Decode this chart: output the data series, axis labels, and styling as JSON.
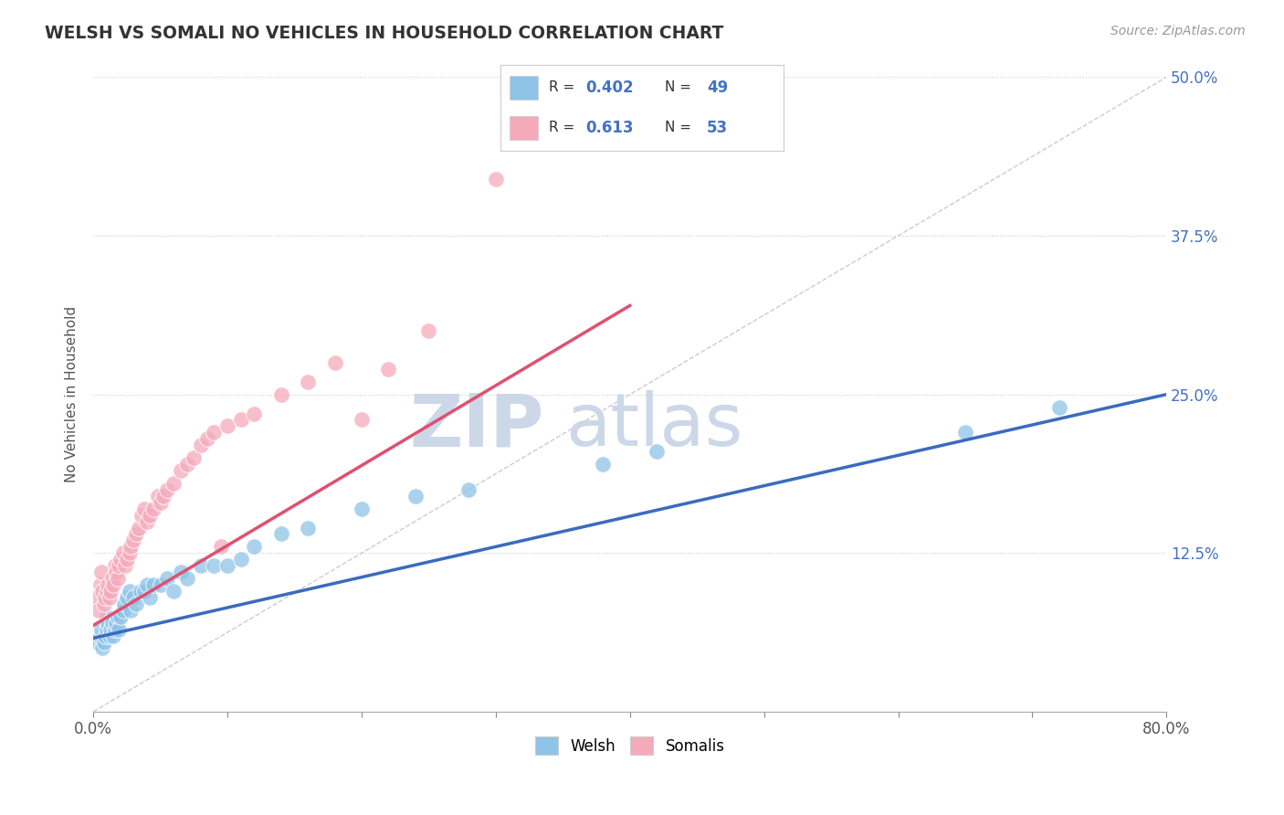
{
  "title": "WELSH VS SOMALI NO VEHICLES IN HOUSEHOLD CORRELATION CHART",
  "source_text": "Source: ZipAtlas.com",
  "ylabel": "No Vehicles in Household",
  "xlim": [
    0.0,
    0.8
  ],
  "ylim": [
    0.0,
    0.5
  ],
  "xticks": [
    0.0,
    0.1,
    0.2,
    0.3,
    0.4,
    0.5,
    0.6,
    0.7,
    0.8
  ],
  "yticks": [
    0.0,
    0.125,
    0.25,
    0.375,
    0.5
  ],
  "welsh_color": "#8ec4e8",
  "somali_color": "#f5aabb",
  "welsh_line_color": "#3a6bbf",
  "somali_line_color": "#e05070",
  "diag_color": "#cccccc",
  "watermark_color": "#ccd8e8",
  "legend_R_welsh": "0.402",
  "legend_N_welsh": "49",
  "legend_R_somali": "0.613",
  "legend_N_somali": "53",
  "welsh_x": [
    0.003,
    0.005,
    0.006,
    0.007,
    0.008,
    0.009,
    0.01,
    0.01,
    0.011,
    0.012,
    0.013,
    0.014,
    0.015,
    0.016,
    0.017,
    0.018,
    0.019,
    0.02,
    0.022,
    0.023,
    0.025,
    0.027,
    0.028,
    0.03,
    0.032,
    0.035,
    0.038,
    0.04,
    0.042,
    0.045,
    0.05,
    0.055,
    0.06,
    0.065,
    0.07,
    0.08,
    0.09,
    0.1,
    0.11,
    0.12,
    0.14,
    0.16,
    0.2,
    0.24,
    0.28,
    0.38,
    0.42,
    0.65,
    0.72
  ],
  "welsh_y": [
    0.055,
    0.06,
    0.065,
    0.05,
    0.055,
    0.06,
    0.065,
    0.075,
    0.07,
    0.06,
    0.065,
    0.07,
    0.06,
    0.065,
    0.07,
    0.075,
    0.065,
    0.075,
    0.08,
    0.085,
    0.09,
    0.095,
    0.08,
    0.09,
    0.085,
    0.095,
    0.095,
    0.1,
    0.09,
    0.1,
    0.1,
    0.105,
    0.095,
    0.11,
    0.105,
    0.115,
    0.115,
    0.115,
    0.12,
    0.13,
    0.14,
    0.145,
    0.16,
    0.17,
    0.175,
    0.195,
    0.205,
    0.22,
    0.24
  ],
  "somali_x": [
    0.002,
    0.004,
    0.005,
    0.006,
    0.007,
    0.008,
    0.009,
    0.01,
    0.011,
    0.012,
    0.013,
    0.014,
    0.015,
    0.016,
    0.017,
    0.018,
    0.019,
    0.02,
    0.022,
    0.024,
    0.025,
    0.027,
    0.028,
    0.03,
    0.032,
    0.034,
    0.036,
    0.038,
    0.04,
    0.042,
    0.045,
    0.048,
    0.05,
    0.052,
    0.055,
    0.06,
    0.065,
    0.07,
    0.075,
    0.08,
    0.085,
    0.09,
    0.095,
    0.1,
    0.11,
    0.12,
    0.14,
    0.16,
    0.18,
    0.2,
    0.22,
    0.25,
    0.3
  ],
  "somali_y": [
    0.09,
    0.08,
    0.1,
    0.11,
    0.095,
    0.085,
    0.09,
    0.095,
    0.1,
    0.09,
    0.095,
    0.105,
    0.1,
    0.115,
    0.11,
    0.105,
    0.115,
    0.12,
    0.125,
    0.115,
    0.12,
    0.125,
    0.13,
    0.135,
    0.14,
    0.145,
    0.155,
    0.16,
    0.15,
    0.155,
    0.16,
    0.17,
    0.165,
    0.17,
    0.175,
    0.18,
    0.19,
    0.195,
    0.2,
    0.21,
    0.215,
    0.22,
    0.13,
    0.225,
    0.23,
    0.235,
    0.25,
    0.26,
    0.275,
    0.23,
    0.27,
    0.3,
    0.42
  ],
  "welsh_trend_x": [
    0.0,
    0.8
  ],
  "welsh_trend_y": [
    0.058,
    0.25
  ],
  "somali_trend_x": [
    0.0,
    0.4
  ],
  "somali_trend_y": [
    0.068,
    0.32
  ]
}
